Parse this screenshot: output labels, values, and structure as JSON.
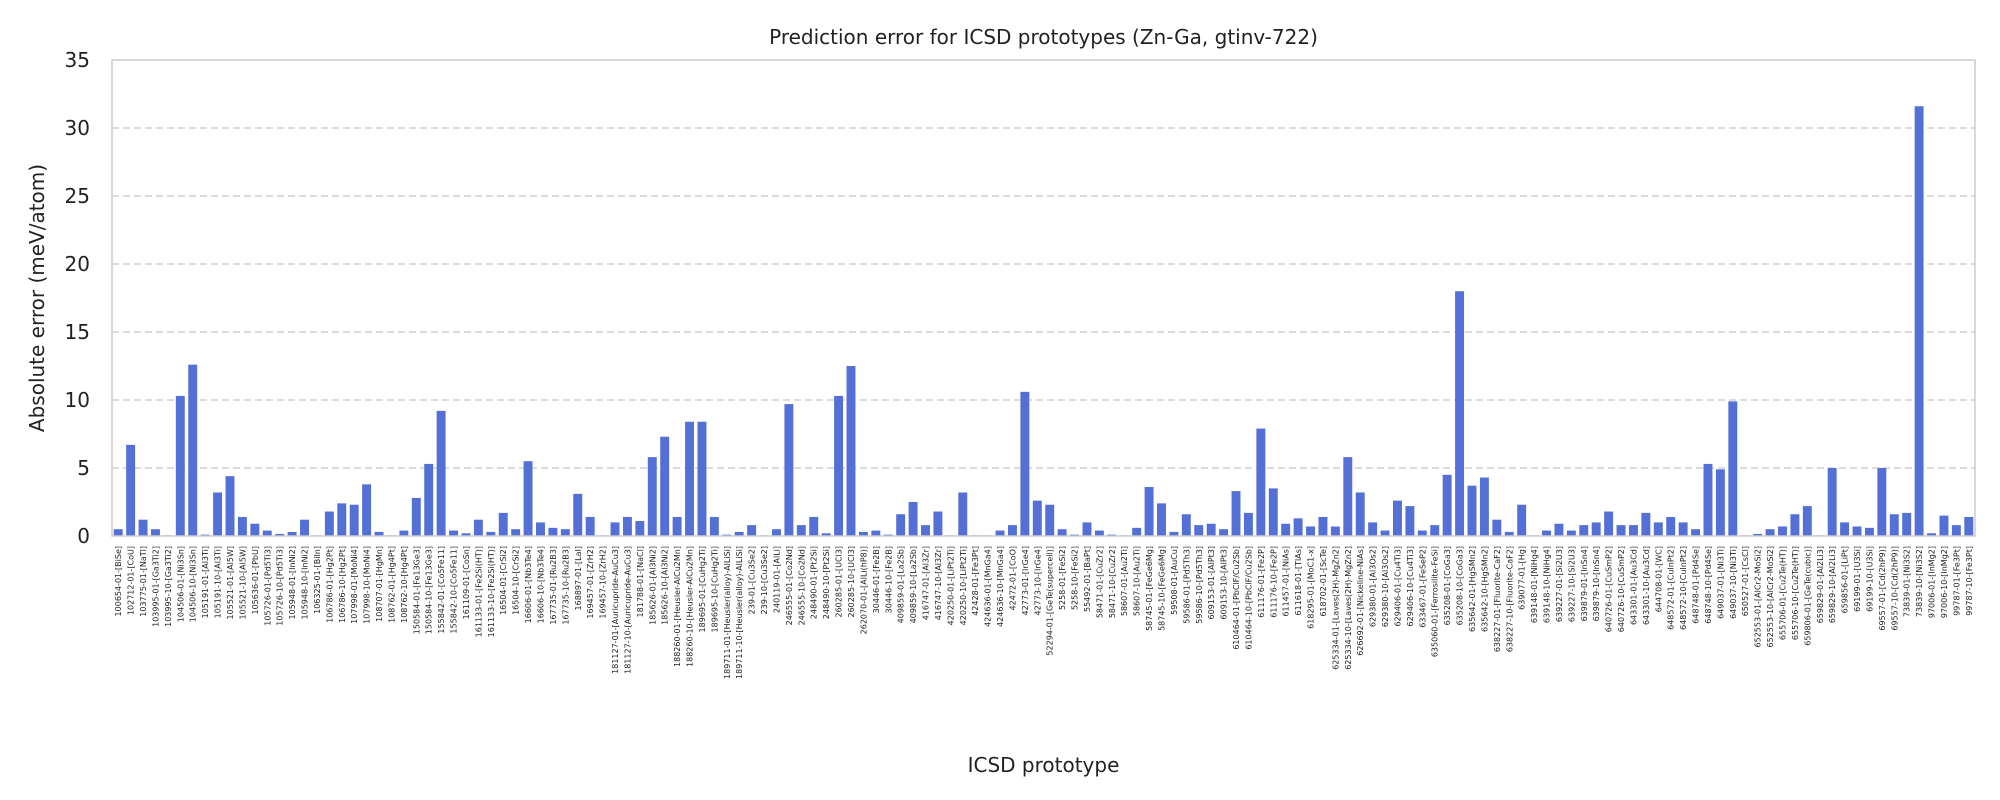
{
  "chart_data": {
    "type": "bar",
    "title": "Prediction error for ICSD prototypes (Zn-Ga, gtinv-722)",
    "xlabel": "ICSD prototype",
    "ylabel": "Absolute error (meV/atom)",
    "ylim": [
      0,
      35
    ],
    "yticks": [
      0,
      5,
      10,
      15,
      20,
      25,
      30,
      35
    ],
    "grid": "y-dashed",
    "bar_color": "#5470d6",
    "categories": [
      "100654-01-[BiSe]",
      "102712-01-[CoU]",
      "103775-01-[NaTl]",
      "103995-01-[Ga3Ti2]",
      "103995-10-[Ga3Ti2]",
      "104506-01-[Ni3Sn]",
      "104506-10-[Ni3Sn]",
      "105191-01-[Al3Ti]",
      "105191-10-[Al3Ti]",
      "105521-01-[Al5W]",
      "105521-10-[Al5W]",
      "105636-01-[PbU]",
      "105726-01-[Pd5Ti3]",
      "105726-10-[Pd5Ti3]",
      "105948-01-[InNi2]",
      "105948-10-[InNi2]",
      "106325-01-[BiIn]",
      "106786-01-[Hg2Pt]",
      "106786-10-[Hg2Pt]",
      "107998-01-[MoNi4]",
      "107998-10-[MoNi4]",
      "108707-01-[HgMn]",
      "108762-01-[Hg4Pt]",
      "108762-10-[Hg4Pt]",
      "150584-01-[Fe13Ge3]",
      "150584-10-[Fe13Ge3]",
      "155842-01-[Co5Fe11]",
      "155842-10-[Co5Fe11]",
      "161109-01-[CoSn]",
      "161133-01-[Fe2Si(HT)]",
      "161133-10-[Fe2Si(HT)]",
      "16504-01-[CrSi2]",
      "16504-10-[CrSi2]",
      "16606-01-[Nb3Te4]",
      "16606-10-[Nb3Te4]",
      "167735-01-[Ru2B3]",
      "167735-10-[Ru2B3]",
      "168897-01-[LaI]",
      "169457-01-[ZrH2]",
      "169457-10-[ZrH2]",
      "181127-01-[Auricupride-AuCu3]",
      "181127-10-[Auricupride-AuCu3]",
      "181788-01-[NaCl]",
      "185626-01-[Al3Ni2]",
      "185626-10-[Al3Ni2]",
      "188260-01-[Heusler-AlCu2Mn]",
      "188260-10-[Heusler-AlCu2Mn]",
      "189695-01-[CuHg2Ti]",
      "189695-10-[CuHg2Ti]",
      "189711-01-[Heusler(alloy)-AlLiSi]",
      "189711-10-[Heusler(alloy)-AlLiSi]",
      "239-01-[Cu3Se2]",
      "239-10-[Cu3Se2]",
      "240119-01-[AlLi]",
      "246555-01-[Co2Nd]",
      "246555-10-[Co2Nd]",
      "248490-01-[Pt2Si]",
      "248490-10-[Pt2Si]",
      "260285-01-[UCl3]",
      "260285-10-[UCl3]",
      "262070-01-[AlLi(hP8)]",
      "30446-01-[Fe2B]",
      "30446-10-[Fe2B]",
      "409859-01-[La2Sb]",
      "409859-10-[La2Sb]",
      "416747-01-[Al3Zr]",
      "416747-10-[Al3Zr]",
      "420250-01-[LiPt2Ti]",
      "420250-10-[LiPt2Ti]",
      "42428-01-[Fe3Pt]",
      "424636-01-[MnGa4]",
      "424636-10-[MnGa4]",
      "42472-01-[CoO]",
      "42773-01-[IrGe4]",
      "42773-10-[IrGe4]",
      "52294-01-[GeTe(supercell)]",
      "5258-01-[FeSi2]",
      "5258-10-[FeSi2]",
      "55492-01-[BaPt]",
      "58471-01-[CuZr2]",
      "58471-10-[CuZr2]",
      "58607-01-[Au2Ti]",
      "58607-10-[Au2Ti]",
      "58745-01-[FeGe6Mg]",
      "58745-10-[FeGe6Mg]",
      "59508-01-[AuCu]",
      "59586-01-[Pd5Th3]",
      "59586-10-[Pd5Th3]",
      "609153-01-[AlPt3]",
      "609153-10-[AlPt3]",
      "610464-01-[PbClF/Cu2Sb]",
      "610464-10-[PbClF/Cu2Sb]",
      "611176-01-[Fe2P]",
      "611176-10-[Fe2P]",
      "611457-01-[NiAs]",
      "611618-01-[TlAs]",
      "618295-01-[MoC1-x]",
      "618702-01-[ScTe]",
      "625334-01-[Laves(2H)-MgZn2]",
      "625334-10-[Laves(2H)-MgZn2]",
      "626692-01-[Nickeline-NiAs]",
      "629380-01-[Al3Os2]",
      "629380-10-[Al3Os2]",
      "629406-01-[Cu4Ti3]",
      "629406-10-[Cu4Ti3]",
      "633467-01-[FeSeP2]",
      "635060-01-[Ferrosilite-FeSi]",
      "635208-01-[CoGa3]",
      "635208-10-[CoGa3]",
      "635642-01-[HgSMn2]",
      "635642-10-[HgSMn2]",
      "638227-01-[Fluorite-CaF2]",
      "638227-10-[Fluorite-CaF2]",
      "639077-01-[Hg]",
      "639148-01-[NiHg4]",
      "639148-10-[NiHg4]",
      "639227-01-[Si2U3]",
      "639227-10-[Si2U3]",
      "639879-01-[InSn4]",
      "639879-10-[InSn4]",
      "640726-01-[CuSmP2]",
      "640726-10-[CuSmP2]",
      "643301-01-[Au3Cd]",
      "643301-10-[Au3Cd]",
      "644708-01-[WC]",
      "648572-01-[CuInPt2]",
      "648572-10-[CuInPt2]",
      "648748-01-[Pd4Se]",
      "648748-10-[Pd4Se]",
      "649037-01-[Ni3Ti]",
      "649037-10-[Ni3Ti]",
      "650527-01-[CsCl]",
      "652553-01-[AlCr2-MoSi2]",
      "652553-10-[AlCr2-MoSi2]",
      "655706-01-[Cu2Te(HT)]",
      "655706-10-[Cu2Te(HT)]",
      "659806-01-[GeTe(cubic)]",
      "659829-01-[Al2Li3]",
      "659829-10-[Al2Li3]",
      "659856-01-[LiPt]",
      "69199-01-[U3Si]",
      "69199-10-[U3Si]",
      "69557-01-[Cd(2hP9)]",
      "69557-10-[Cd(2hP9)]",
      "73839-01-[Ni3S2]",
      "73839-10-[Ni3S2]",
      "97006-01-[InMg2]",
      "97006-10-[InMg2]",
      "99787-01-[Fe3Pt]",
      "99787-10-[Fe3Pt]"
    ],
    "values": [
      0.5,
      6.7,
      1.2,
      0.5,
      0.05,
      10.3,
      12.6,
      0.1,
      3.2,
      4.4,
      1.4,
      0.9,
      0.4,
      0.15,
      0.3,
      1.2,
      0.05,
      1.8,
      2.4,
      2.3,
      3.8,
      0.3,
      0.05,
      0.4,
      2.8,
      5.3,
      9.2,
      0.4,
      0.2,
      1.2,
      0.3,
      1.7,
      0.5,
      5.5,
      1.0,
      0.6,
      0.5,
      3.1,
      1.4,
      0.05,
      1.0,
      1.4,
      1.1,
      5.8,
      7.3,
      1.4,
      8.4,
      8.4,
      1.4,
      0.1,
      0.3,
      0.8,
      0.05,
      0.5,
      9.7,
      0.8,
      1.4,
      0.2,
      10.3,
      12.5,
      0.3,
      0.4,
      0.1,
      1.6,
      2.5,
      0.8,
      1.8,
      0.05,
      3.2,
      0.05,
      0.05,
      0.4,
      0.8,
      10.6,
      2.6,
      2.3,
      0.5,
      0.1,
      1.0,
      0.4,
      0.1,
      0.05,
      0.6,
      3.6,
      2.4,
      0.3,
      1.6,
      0.8,
      0.9,
      0.5,
      3.3,
      1.7,
      7.9,
      3.5,
      0.9,
      1.3,
      0.7,
      1.4,
      0.7,
      5.8,
      3.2,
      1.0,
      0.4,
      2.6,
      2.2,
      0.4,
      0.8,
      4.5,
      18.0,
      3.7,
      4.3,
      1.2,
      0.3,
      2.3,
      0.05,
      0.4,
      0.9,
      0.4,
      0.8,
      1.0,
      1.8,
      0.8,
      0.8,
      1.7,
      1.0,
      1.4,
      1.0,
      0.5,
      5.3,
      4.9,
      9.9,
      0.05,
      0.15,
      0.5,
      0.7,
      1.6,
      2.2,
      0.05,
      5.0,
      1.0,
      0.7,
      0.6,
      5.0,
      1.6,
      1.7,
      31.6,
      0.2,
      1.5,
      0.8,
      1.4
    ]
  }
}
